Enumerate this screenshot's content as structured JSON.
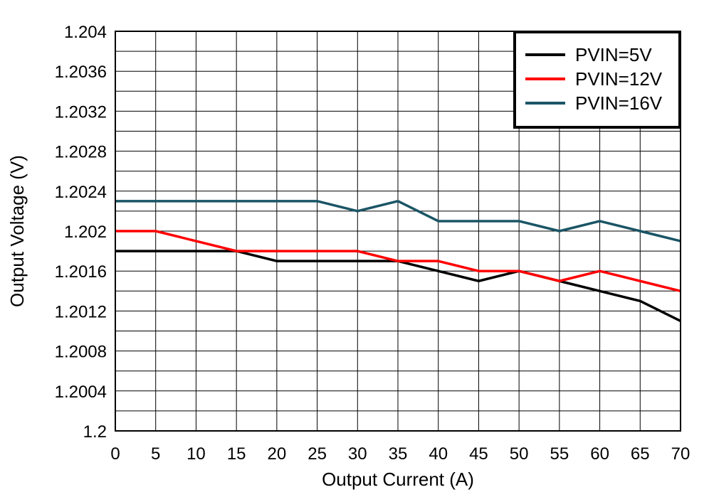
{
  "chart_data": {
    "type": "line",
    "title": "",
    "xlabel": "Output Current (A)",
    "ylabel": "Output Voltage (V)",
    "xlim": [
      0,
      70
    ],
    "ylim": [
      1.2,
      1.204
    ],
    "grid": true,
    "legend_position": "top-right",
    "x_ticks": [
      "0",
      "5",
      "10",
      "15",
      "20",
      "25",
      "30",
      "35",
      "40",
      "45",
      "50",
      "55",
      "60",
      "65",
      "70"
    ],
    "y_ticks": [
      "1.2",
      "1.2004",
      "1.2008",
      "1.2012",
      "1.2016",
      "1.202",
      "1.2024",
      "1.2028",
      "1.2032",
      "1.2036",
      "1.204"
    ],
    "x": [
      0,
      5,
      10,
      15,
      20,
      25,
      30,
      35,
      40,
      45,
      50,
      55,
      60,
      65,
      70
    ],
    "series": [
      {
        "name": "PVIN=5V",
        "color": "#000000",
        "values": [
          1.2018,
          1.2018,
          1.2018,
          1.2018,
          1.2017,
          1.2017,
          1.2017,
          1.2017,
          1.2016,
          1.2015,
          1.2016,
          1.2015,
          1.2014,
          1.2013,
          1.2011
        ]
      },
      {
        "name": "PVIN=12V",
        "color": "#ff0000",
        "values": [
          1.202,
          1.202,
          1.2019,
          1.2018,
          1.2018,
          1.2018,
          1.2018,
          1.2017,
          1.2017,
          1.2016,
          1.2016,
          1.2015,
          1.2016,
          1.2015,
          1.2014
        ]
      },
      {
        "name": "PVIN=16V",
        "color": "#1a5566",
        "values": [
          1.2023,
          1.2023,
          1.2023,
          1.2023,
          1.2023,
          1.2023,
          1.2022,
          1.2023,
          1.2021,
          1.2021,
          1.2021,
          1.202,
          1.2021,
          1.202,
          1.2019
        ]
      }
    ]
  }
}
